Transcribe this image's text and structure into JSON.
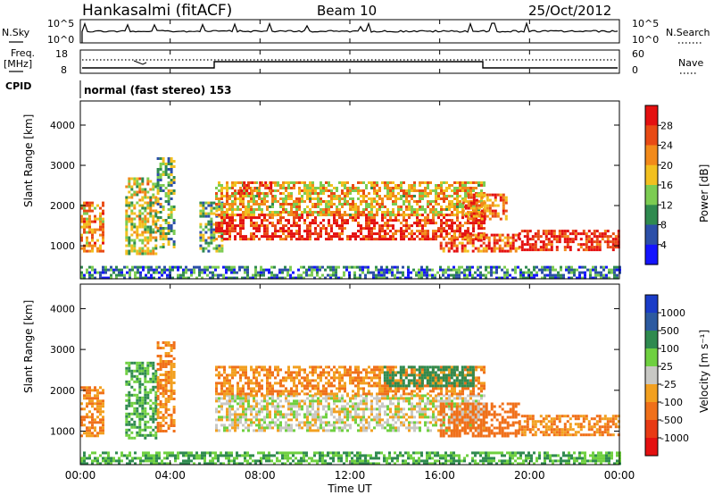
{
  "header": {
    "station": "Hankasalmi (fitACF)",
    "beam": "Beam 10",
    "date": "25/Oct/2012"
  },
  "sky_panel": {
    "left_label": "N.Sky",
    "right_label": "N.Search",
    "left_tick_top": "10^5",
    "left_tick_bottom": "10^0",
    "right_tick_top": "10^5",
    "right_tick_bottom": "10^0"
  },
  "freq_panel": {
    "label_line1": "Freq.",
    "label_line2": "[MHz]",
    "left_tick_top": "18",
    "left_tick_bottom": "8",
    "right_label": "Nave",
    "right_tick_top": "60",
    "right_tick_bottom": "0"
  },
  "cpid": {
    "label": "CPID",
    "value": "normal (fast stereo) 153"
  },
  "power_colorbar": {
    "label": "Power [dB]",
    "ticks": [
      "4",
      "8",
      "12",
      "16",
      "20",
      "24",
      "28"
    ],
    "colors": [
      "#1414ff",
      "#2c4fa8",
      "#2f8a4f",
      "#7ccc52",
      "#f2c020",
      "#f28a1a",
      "#e84a14",
      "#e41010"
    ]
  },
  "velocity_colorbar": {
    "label": "Velocity [m s⁻¹]",
    "ticks": [
      "1000",
      "500",
      "100",
      "25",
      "-25",
      "-100",
      "-500",
      "-1000"
    ],
    "colors": [
      "#1a3cc8",
      "#2c5aa0",
      "#2f8a4f",
      "#6fd040",
      "#c8c8c4",
      "#f2a020",
      "#f0701a",
      "#e83a14",
      "#e41010"
    ]
  },
  "x_axis": {
    "label": "Time UT",
    "ticks": [
      "00:00",
      "04:00",
      "08:00",
      "12:00",
      "16:00",
      "20:00",
      "00:00"
    ]
  },
  "y_axis": {
    "label": "Slant Range [km]",
    "ticks": [
      "1000",
      "2000",
      "3000",
      "4000"
    ]
  },
  "chart_data": [
    {
      "type": "heatmap",
      "variable": "Power",
      "unit": "dB",
      "ylabel": "Slant Range [km]",
      "xlabel": "Time UT",
      "xlim_hours": [
        0,
        24
      ],
      "ylim_km": [
        180,
        4600
      ],
      "color_range": [
        0,
        30
      ],
      "regions": [
        {
          "t0": 0.0,
          "t1": 1.0,
          "r0": 900,
          "r1": 2100,
          "level": 20
        },
        {
          "t0": 2.0,
          "t1": 3.4,
          "r0": 800,
          "r1": 2700,
          "level": 16
        },
        {
          "t0": 3.4,
          "t1": 4.2,
          "r0": 1000,
          "r1": 3200,
          "level": 12
        },
        {
          "t0": 5.3,
          "t1": 6.3,
          "r0": 900,
          "r1": 2100,
          "level": 12
        },
        {
          "t0": 6.0,
          "t1": 18.0,
          "r0": 1200,
          "r1": 1800,
          "level": 26
        },
        {
          "t0": 6.0,
          "t1": 18.0,
          "r0": 1800,
          "r1": 2600,
          "level": 18
        },
        {
          "t0": 7.0,
          "t1": 8.5,
          "r0": 2300,
          "r1": 2600,
          "level": 26
        },
        {
          "t0": 16.0,
          "t1": 19.5,
          "r0": 900,
          "r1": 1300,
          "level": 24
        },
        {
          "t0": 17.0,
          "t1": 19.0,
          "r0": 1700,
          "r1": 2300,
          "level": 22
        },
        {
          "t0": 19.5,
          "t1": 24.0,
          "r0": 900,
          "r1": 1400,
          "level": 28
        },
        {
          "t0": 0.0,
          "t1": 24.0,
          "r0": 200,
          "r1": 500,
          "level": 8
        }
      ]
    },
    {
      "type": "heatmap",
      "variable": "Velocity",
      "unit": "m s^-1",
      "ylabel": "Slant Range [km]",
      "xlabel": "Time UT",
      "xlim_hours": [
        0,
        24
      ],
      "ylim_km": [
        180,
        4600
      ],
      "color_range": [
        -1000,
        1000
      ],
      "regions": [
        {
          "t0": 0.0,
          "t1": 1.0,
          "r0": 900,
          "r1": 2100,
          "level": -100
        },
        {
          "t0": 2.0,
          "t1": 3.4,
          "r0": 800,
          "r1": 2700,
          "level": 100
        },
        {
          "t0": 3.4,
          "t1": 4.2,
          "r0": 1000,
          "r1": 3200,
          "level": -100
        },
        {
          "t0": 6.0,
          "t1": 18.0,
          "r0": 1000,
          "r1": 1900,
          "level": 0
        },
        {
          "t0": 6.0,
          "t1": 18.0,
          "r0": 1900,
          "r1": 2600,
          "level": -100
        },
        {
          "t0": 13.5,
          "t1": 17.5,
          "r0": 2100,
          "r1": 2600,
          "level": 300
        },
        {
          "t0": 16.0,
          "t1": 19.5,
          "r0": 900,
          "r1": 1700,
          "level": -300
        },
        {
          "t0": 19.5,
          "t1": 24.0,
          "r0": 900,
          "r1": 1400,
          "level": -100
        },
        {
          "t0": 0.0,
          "t1": 24.0,
          "r0": 200,
          "r1": 500,
          "level": 100
        }
      ]
    }
  ]
}
